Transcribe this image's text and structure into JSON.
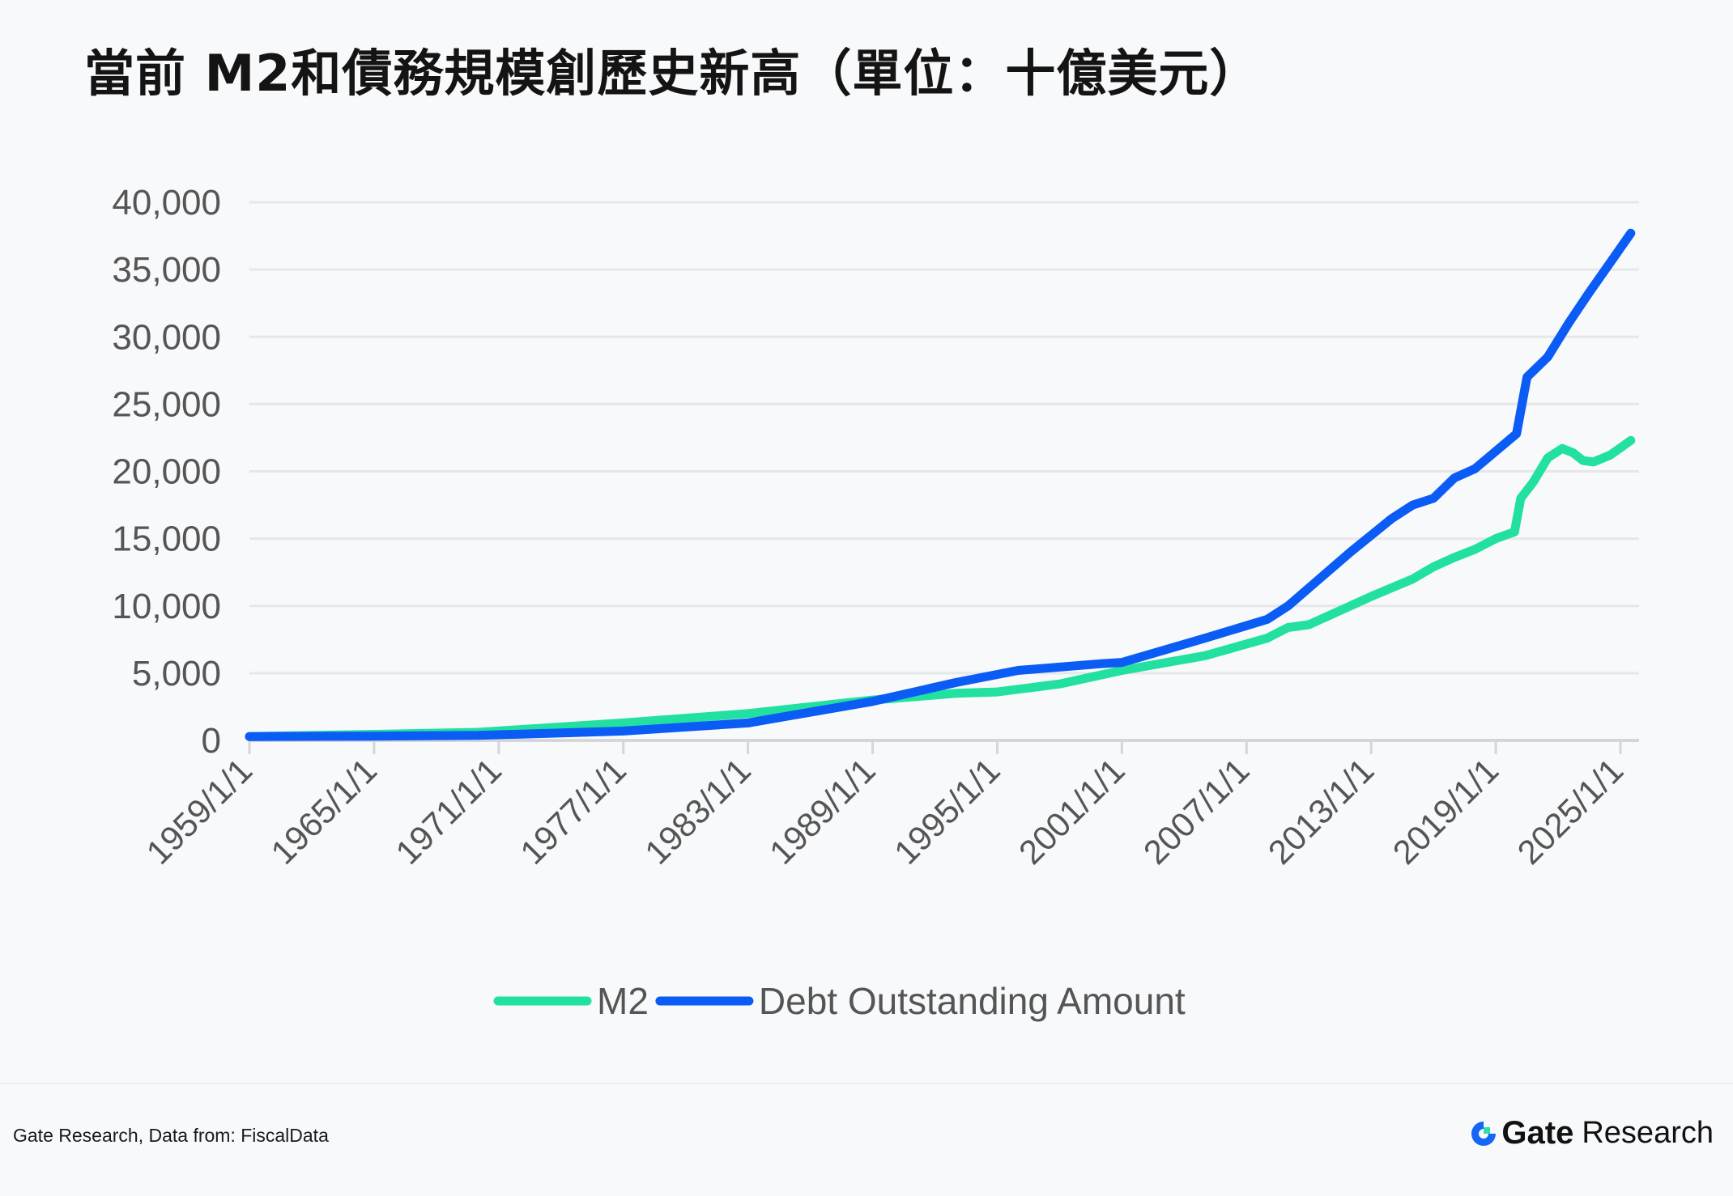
{
  "chart_data": {
    "type": "line",
    "title": "當前 M2和債務規模創歷史新高（單位：十億美元）",
    "xlabel": "",
    "ylabel": "",
    "ylim": [
      0,
      40000
    ],
    "xlim": [
      1959,
      2025.6
    ],
    "yticks": [
      "0",
      "5,000",
      "10,000",
      "15,000",
      "20,000",
      "25,000",
      "30,000",
      "35,000",
      "40,000"
    ],
    "ytick_values": [
      0,
      5000,
      10000,
      15000,
      20000,
      25000,
      30000,
      35000,
      40000
    ],
    "xticks": [
      "1959/1/1",
      "1965/1/1",
      "1971/1/1",
      "1977/1/1",
      "1983/1/1",
      "1989/1/1",
      "1995/1/1",
      "2001/1/1",
      "2007/1/1",
      "2013/1/1",
      "2019/1/1",
      "2025/1/1"
    ],
    "xtick_values": [
      1959,
      1965,
      1971,
      1977,
      1983,
      1989,
      1995,
      2001,
      2007,
      2013,
      2019,
      2025
    ],
    "grid": true,
    "legend_position": "bottom-center",
    "series": [
      {
        "name": "M2",
        "color": "#22e0a0",
        "x": [
          1959,
          1965,
          1970,
          1977,
          1983,
          1989,
          1993,
          1995,
          1998,
          2001,
          2005,
          2008,
          2009,
          2010,
          2011,
          2013,
          2015,
          2016,
          2017,
          2018,
          2019,
          2019.9,
          2020.2,
          2020.8,
          2021.5,
          2022.2,
          2022.7,
          2023.2,
          2023.7,
          2024.5,
          2025.5
        ],
        "values": [
          290,
          450,
          600,
          1300,
          2000,
          3000,
          3500,
          3600,
          4200,
          5200,
          6300,
          7600,
          8400,
          8600,
          9300,
          10700,
          12000,
          12900,
          13600,
          14200,
          15000,
          15500,
          18000,
          19200,
          21000,
          21700,
          21400,
          20800,
          20700,
          21200,
          22300
        ]
      },
      {
        "name": "Debt Outstanding Amount",
        "color": "#0a5cf5",
        "x": [
          1959,
          1965,
          1970,
          1977,
          1983,
          1989,
          1993,
          1996,
          2000,
          2001,
          2005,
          2008,
          2009,
          2010.5,
          2012,
          2014,
          2015,
          2016,
          2017,
          2018,
          2019,
          2020,
          2020.5,
          2021.5,
          2022.5,
          2023.5,
          2024.5,
          2025.5
        ],
        "values": [
          290,
          320,
          370,
          700,
          1300,
          2900,
          4300,
          5200,
          5700,
          5800,
          7600,
          9000,
          10000,
          12000,
          14000,
          16500,
          17500,
          18000,
          19500,
          20200,
          21500,
          22800,
          27000,
          28500,
          31000,
          33300,
          35500,
          37700
        ]
      }
    ]
  },
  "footer": {
    "source": "Gate Research, Data from: FiscalData",
    "logo_gate": "Gate",
    "logo_research": "Research"
  }
}
